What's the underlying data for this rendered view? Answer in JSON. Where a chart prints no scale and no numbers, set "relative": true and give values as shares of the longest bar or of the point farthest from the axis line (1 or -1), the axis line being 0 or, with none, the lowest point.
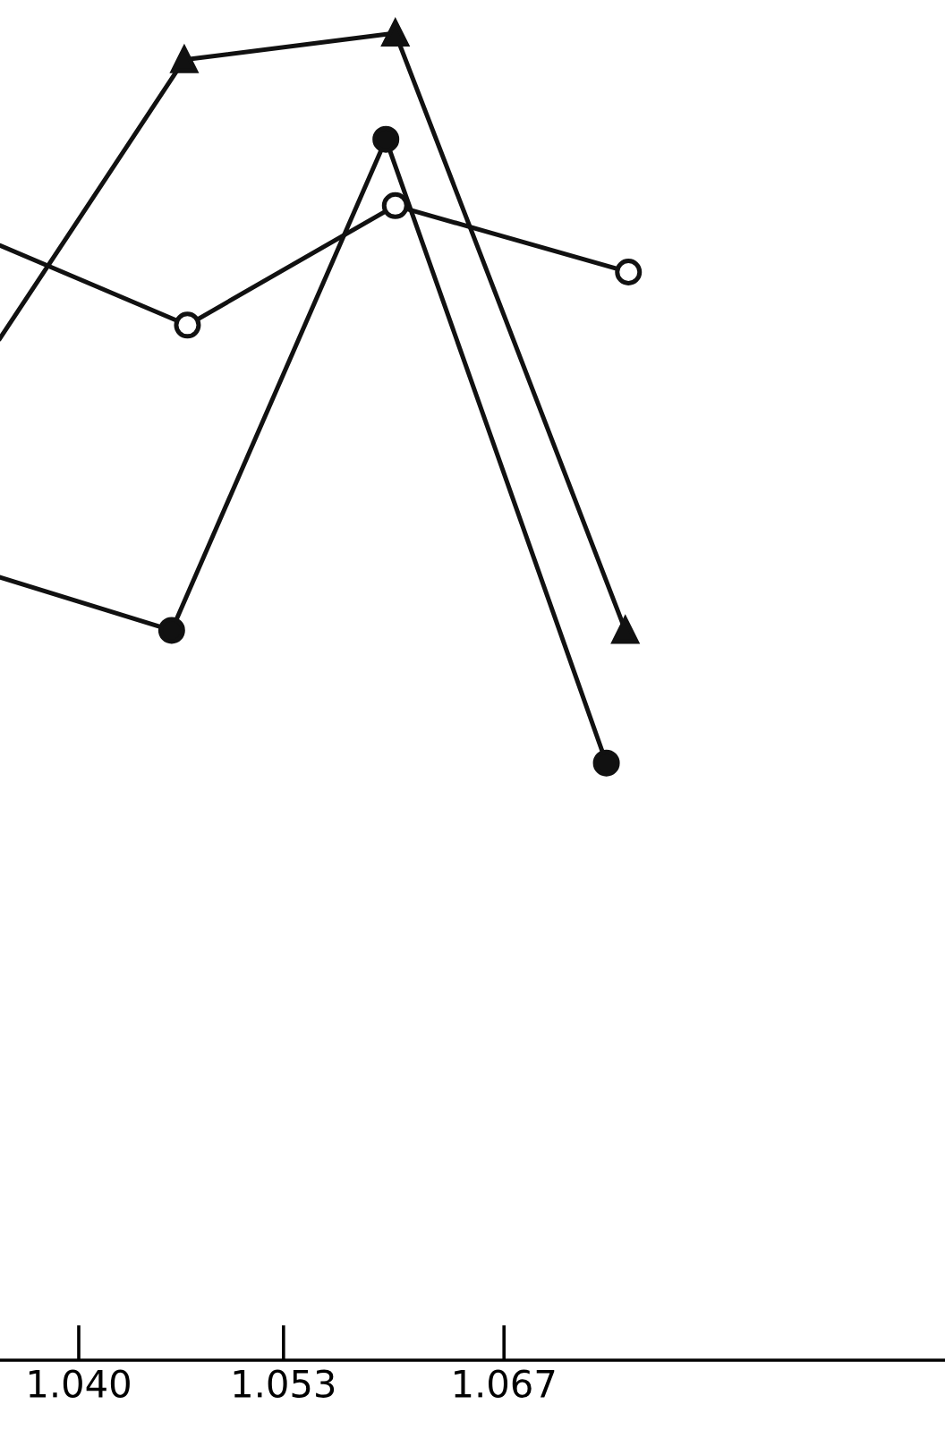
{
  "chart_data": {
    "type": "line",
    "relative": true,
    "xlim": [
      1.035,
      1.095
    ],
    "xticks": [
      {
        "value": 1.04,
        "label": "1.040"
      },
      {
        "value": 1.053,
        "label": "1.053"
      },
      {
        "value": 1.067,
        "label": "1.067"
      }
    ],
    "tick_labels": "x",
    "grid": false,
    "legend": false,
    "line_style": "solid",
    "series": [
      {
        "color": "#111111",
        "marker": "triangle",
        "x": [
          1.035,
          1.0467,
          1.0601,
          1.0747
        ],
        "values": [
          0.77,
          0.98,
          1.0,
          0.55
        ]
      },
      {
        "color": "#111111",
        "marker": "open circle",
        "x": [
          1.035,
          1.0469,
          1.0601,
          1.0749
        ],
        "values": [
          0.84,
          0.78,
          0.87,
          0.82
        ]
      },
      {
        "color": "#111111",
        "marker": "circle",
        "x": [
          1.035,
          1.0459,
          1.0595,
          1.0735
        ],
        "values": [
          0.59,
          0.55,
          0.92,
          0.45
        ]
      }
    ]
  }
}
